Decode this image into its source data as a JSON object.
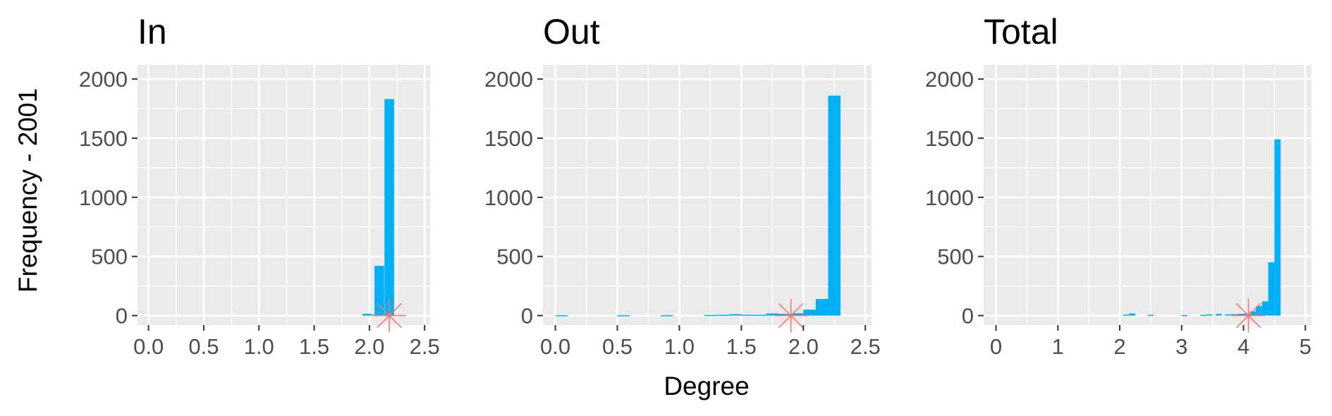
{
  "figure": {
    "shared_ylabel": "Frequency - 2001",
    "shared_xlabel": "Degree"
  },
  "colors": {
    "panel_background": "#ebebeb",
    "gridline": "#ffffff",
    "bar": "#00b0f6",
    "marker": "#f8766d",
    "tick_label": "#4d4d4d"
  },
  "chart_data": [
    {
      "type": "bar",
      "title": "In",
      "xlim": [
        -0.1,
        2.55
      ],
      "ylim": [
        -80,
        2120
      ],
      "xticks": [
        0.0,
        0.5,
        1.0,
        1.5,
        2.0,
        2.5
      ],
      "xtick_labels": [
        "0.0",
        "0.5",
        "1.0",
        "1.5",
        "2.0",
        "2.5"
      ],
      "yticks": [
        0,
        500,
        1000,
        1500,
        2000
      ],
      "ytick_labels": [
        "0",
        "500",
        "1000",
        "1500",
        "2000"
      ],
      "bin_width": 0.087,
      "bins": [
        {
          "x": 1.98,
          "y": 15
        },
        {
          "x": 2.07,
          "y": 8
        },
        {
          "x": 2.09,
          "y": 420
        },
        {
          "x": 2.18,
          "y": 1830
        }
      ],
      "marker": {
        "x": 2.18,
        "y": 0
      },
      "grid": true
    },
    {
      "type": "bar",
      "title": "Out",
      "xlim": [
        -0.1,
        2.55
      ],
      "ylim": [
        -80,
        2120
      ],
      "xticks": [
        0.0,
        0.5,
        1.0,
        1.5,
        2.0,
        2.5
      ],
      "xtick_labels": [
        "0.0",
        "0.5",
        "1.0",
        "1.5",
        "2.0",
        "2.5"
      ],
      "yticks": [
        0,
        500,
        1000,
        1500,
        2000
      ],
      "ytick_labels": [
        "0",
        "500",
        "1000",
        "1500",
        "2000"
      ],
      "bin_width": 0.1,
      "bins": [
        {
          "x": 0.05,
          "y": 3
        },
        {
          "x": 0.55,
          "y": 3
        },
        {
          "x": 0.9,
          "y": 3
        },
        {
          "x": 1.25,
          "y": 5
        },
        {
          "x": 1.35,
          "y": 6
        },
        {
          "x": 1.45,
          "y": 12
        },
        {
          "x": 1.55,
          "y": 7
        },
        {
          "x": 1.65,
          "y": 6
        },
        {
          "x": 1.75,
          "y": 18
        },
        {
          "x": 1.85,
          "y": 15
        },
        {
          "x": 1.95,
          "y": 20
        },
        {
          "x": 2.05,
          "y": 50
        },
        {
          "x": 2.15,
          "y": 140
        },
        {
          "x": 2.25,
          "y": 1860
        }
      ],
      "marker": {
        "x": 1.9,
        "y": 0
      },
      "grid": true
    },
    {
      "type": "bar",
      "title": "Total",
      "xlim": [
        -0.2,
        5.1
      ],
      "ylim": [
        -80,
        2120
      ],
      "xticks": [
        0,
        1,
        2,
        3,
        4,
        5
      ],
      "xtick_labels": [
        "0",
        "1",
        "2",
        "3",
        "4",
        "5"
      ],
      "yticks": [
        0,
        500,
        1000,
        1500,
        2000
      ],
      "ytick_labels": [
        "0",
        "500",
        "1000",
        "1500",
        "2000"
      ],
      "bin_width": 0.1,
      "bins": [
        {
          "x": 2.1,
          "y": 8
        },
        {
          "x": 2.2,
          "y": 18
        },
        {
          "x": 2.5,
          "y": 6
        },
        {
          "x": 3.05,
          "y": 4
        },
        {
          "x": 3.35,
          "y": 6
        },
        {
          "x": 3.45,
          "y": 10
        },
        {
          "x": 3.6,
          "y": 14
        },
        {
          "x": 3.75,
          "y": 10
        },
        {
          "x": 3.85,
          "y": 12
        },
        {
          "x": 3.95,
          "y": 15
        },
        {
          "x": 4.05,
          "y": 18
        },
        {
          "x": 4.15,
          "y": 35
        },
        {
          "x": 4.25,
          "y": 80
        },
        {
          "x": 4.35,
          "y": 120
        },
        {
          "x": 4.45,
          "y": 450
        },
        {
          "x": 4.55,
          "y": 1490
        }
      ],
      "marker": {
        "x": 4.08,
        "y": 0
      },
      "grid": true
    }
  ]
}
